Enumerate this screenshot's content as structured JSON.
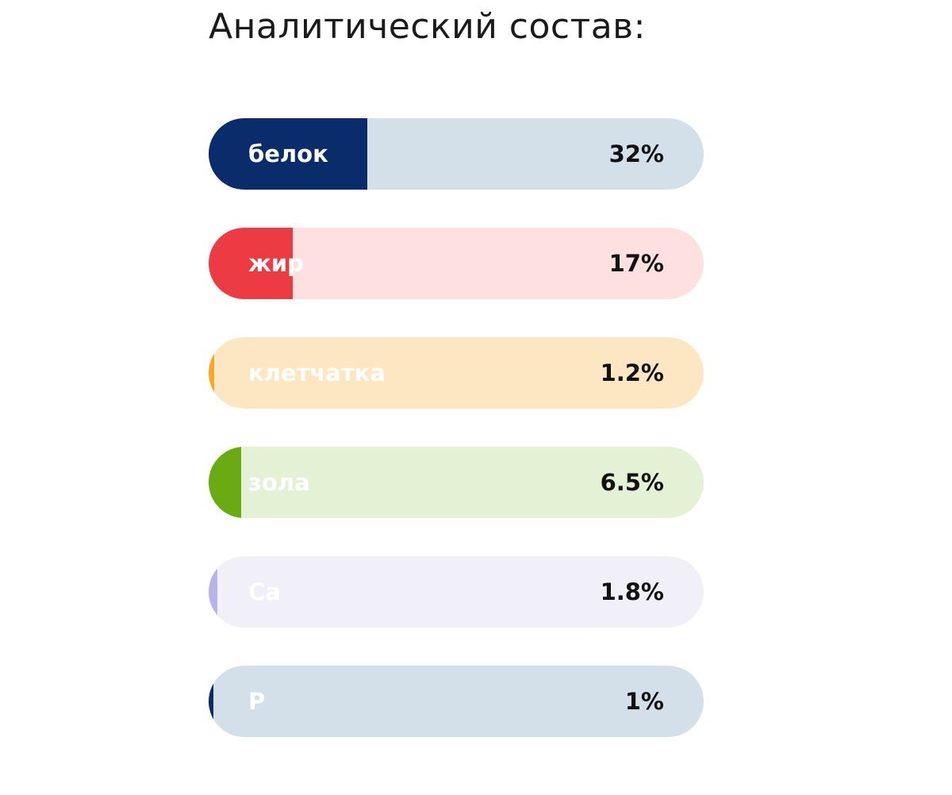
{
  "title": "Аналитический состав:",
  "chart_data": {
    "type": "bar",
    "title": "Аналитический состав:",
    "categories": [
      "белок",
      "жир",
      "клетчатка",
      "зола",
      "Ca",
      "P"
    ],
    "values": [
      32,
      17,
      1.2,
      6.5,
      1.8,
      1
    ],
    "value_labels": [
      "32%",
      "17%",
      "1.2%",
      "6.5%",
      "1.8%",
      "1%"
    ],
    "xlim": [
      0,
      100
    ],
    "fill_colors": [
      "#0a2c6b",
      "#ec3b43",
      "#f7a823",
      "#6aaa12",
      "#b8b3e8",
      "#0a2c6b"
    ],
    "track_colors": [
      "#d3e0ea",
      "#fde0df",
      "#fde7c3",
      "#e4f1d4",
      "#f1f0f9",
      "#d3e0ea"
    ]
  }
}
